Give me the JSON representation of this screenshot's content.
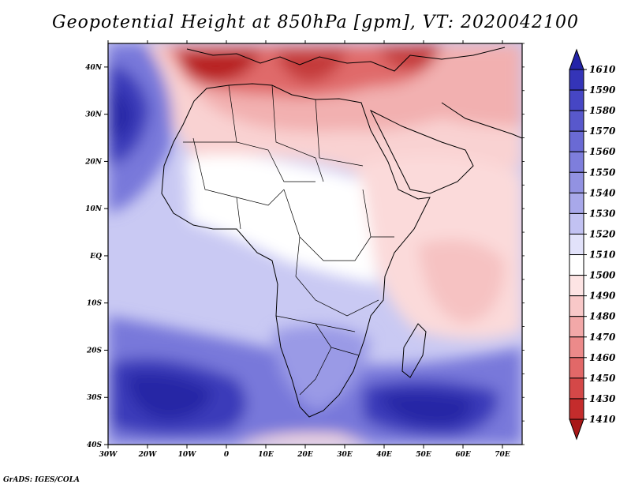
{
  "title": "Geopotential Height at 850hPa [gpm], VT: 2020042100",
  "credit": "GrADS: IGES/COLA",
  "map": {
    "lat_labels": [
      "40N",
      "30N",
      "20N",
      "10N",
      "EQ",
      "10S",
      "20S",
      "30S",
      "40S"
    ],
    "lon_labels": [
      "30W",
      "20W",
      "10W",
      "0",
      "10E",
      "20E",
      "30E",
      "40E",
      "50E",
      "60E",
      "70E"
    ],
    "lat_range": [
      -40,
      45
    ],
    "lon_range": [
      -30,
      75
    ],
    "variable": "Geopotential height 850 hPa",
    "units": "gpm"
  },
  "colorbar": {
    "levels": [
      "1610",
      "1590",
      "1580",
      "1570",
      "1560",
      "1550",
      "1540",
      "1530",
      "1520",
      "1510",
      "1500",
      "1490",
      "1480",
      "1470",
      "1460",
      "1450",
      "1430",
      "1410"
    ],
    "colors": [
      "#2424a8",
      "#3434b8",
      "#4646c4",
      "#5858cc",
      "#6a6ad4",
      "#7e7edc",
      "#9292e2",
      "#a8a8ea",
      "#c2c2f2",
      "#e2e2fa",
      "#ffffff",
      "#fde4e4",
      "#f8c8c8",
      "#f2a8a8",
      "#ec8a8a",
      "#e26868",
      "#d44848",
      "#c42c2c",
      "#a81818"
    ]
  },
  "palette": {
    "ocean_bg": "#c9c9f3",
    "pos_mid": "#7878da",
    "pos_strong": "#3b3bb9",
    "pos_core": "#2525a5",
    "neg_soft": "#f9d2d2",
    "neg_mid": "#ee8f8f",
    "neg_strong": "#c93a3a",
    "neg_core": "#a81818"
  }
}
